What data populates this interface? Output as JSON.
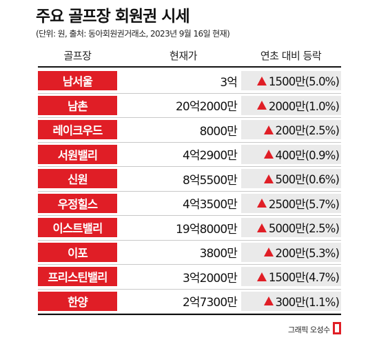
{
  "title": "주요 골프장 회원권 시세",
  "subtitle": "(단위: 원, 출처: 동아회원권거래소, 2023년 9월 16일 현재)",
  "header": {
    "name": "골프장",
    "price": "현재가",
    "change": "연초 대비 등락"
  },
  "colors": {
    "accent": "#e01e26",
    "change_bg": "#eaeaea"
  },
  "rows": [
    {
      "name": "남서울",
      "price": "3억",
      "change": "1500만(5.0%)",
      "icon": "up-triangle-icon"
    },
    {
      "name": "남촌",
      "price": "20억2000만",
      "change": "2000만(1.0%)",
      "icon": "up-triangle-icon"
    },
    {
      "name": "레이크우드",
      "price": "8000만",
      "change": "200만(2.5%)",
      "icon": "up-triangle-icon"
    },
    {
      "name": "서원밸리",
      "price": "4억2900만",
      "change": "400만(0.9%)",
      "icon": "up-triangle-icon"
    },
    {
      "name": "신원",
      "price": "8억5500만",
      "change": "500만(0.6%)",
      "icon": "up-triangle-icon"
    },
    {
      "name": "우정힐스",
      "price": "4억3500만",
      "change": "2500만(5.7%)",
      "icon": "up-triangle-icon"
    },
    {
      "name": "이스트밸리",
      "price": "19억8000만",
      "change": "5000만(2.5%)",
      "icon": "up-triangle-icon"
    },
    {
      "name": "이포",
      "price": "3800만",
      "change": "200만(5.3%)",
      "icon": "up-triangle-icon"
    },
    {
      "name": "프리스틴밸리",
      "price": "3억2000만",
      "change": "1500만(4.7%)",
      "icon": "up-triangle-icon"
    },
    {
      "name": "한양",
      "price": "2억7300만",
      "change": "300만(1.1%)",
      "icon": "up-triangle-icon"
    }
  ],
  "credit": "그래픽 오성수"
}
